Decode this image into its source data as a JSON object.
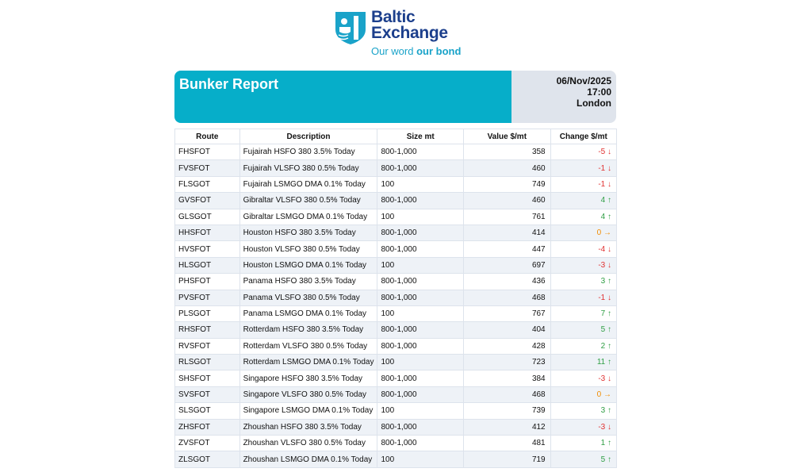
{
  "logo": {
    "line1": "Baltic",
    "line2": "Exchange",
    "tagline_a": "Our word ",
    "tagline_b": "our bond"
  },
  "header": {
    "title": "Bunker Report",
    "date": "06/Nov/2025",
    "time": "17:00",
    "location": "London"
  },
  "colors": {
    "banner": "#06aec9",
    "banner_side": "#dfe4ec",
    "down": "#e03131",
    "up": "#2f9e44",
    "flat": "#f08c00"
  },
  "table": {
    "columns": [
      "Route",
      "Description",
      "Size mt",
      "Value $/mt",
      "Change $/mt"
    ],
    "rows": [
      [
        "FHSFOT",
        "Fujairah HSFO 380 3.5% Today",
        "800-1,000",
        "358",
        "-5",
        "down"
      ],
      [
        "FVSFOT",
        "Fujairah VLSFO 380 0.5% Today",
        "800-1,000",
        "460",
        "-1",
        "down"
      ],
      [
        "FLSGOT",
        "Fujairah LSMGO DMA 0.1% Today",
        "100",
        "749",
        "-1",
        "down"
      ],
      [
        "GVSFOT",
        "Gibraltar VLSFO 380 0.5% Today",
        "800-1,000",
        "460",
        "4",
        "up"
      ],
      [
        "GLSGOT",
        "Gibraltar LSMGO DMA 0.1% Today",
        "100",
        "761",
        "4",
        "up"
      ],
      [
        "HHSFOT",
        "Houston HSFO 380 3.5% Today",
        "800-1,000",
        "414",
        "0",
        "flat"
      ],
      [
        "HVSFOT",
        "Houston VLSFO 380 0.5% Today",
        "800-1,000",
        "447",
        "-4",
        "down"
      ],
      [
        "HLSGOT",
        "Houston LSMGO DMA 0.1% Today",
        "100",
        "697",
        "-3",
        "down"
      ],
      [
        "PHSFOT",
        "Panama HSFO 380 3.5% Today",
        "800-1,000",
        "436",
        "3",
        "up"
      ],
      [
        "PVSFOT",
        "Panama VLSFO 380 0.5% Today",
        "800-1,000",
        "468",
        "-1",
        "down"
      ],
      [
        "PLSGOT",
        "Panama LSMGO DMA 0.1% Today",
        "100",
        "767",
        "7",
        "up"
      ],
      [
        "RHSFOT",
        "Rotterdam HSFO 380 3.5% Today",
        "800-1,000",
        "404",
        "5",
        "up"
      ],
      [
        "RVSFOT",
        "Rotterdam VLSFO 380 0.5% Today",
        "800-1,000",
        "428",
        "2",
        "up"
      ],
      [
        "RLSGOT",
        "Rotterdam LSMGO DMA 0.1% Today",
        "100",
        "723",
        "11",
        "up"
      ],
      [
        "SHSFOT",
        "Singapore HSFO 380 3.5% Today",
        "800-1,000",
        "384",
        "-3",
        "down"
      ],
      [
        "SVSFOT",
        "Singapore VLSFO 380 0.5% Today",
        "800-1,000",
        "468",
        "0",
        "flat"
      ],
      [
        "SLSGOT",
        "Singapore LSMGO DMA 0.1% Today",
        "100",
        "739",
        "3",
        "up"
      ],
      [
        "ZHSFOT",
        "Zhoushan HSFO 380 3.5% Today",
        "800-1,000",
        "412",
        "-3",
        "down"
      ],
      [
        "ZVSFOT",
        "Zhoushan VLSFO 380 0.5% Today",
        "800-1,000",
        "481",
        "1",
        "up"
      ],
      [
        "ZLSGOT",
        "Zhoushan LSMGO DMA 0.1% Today",
        "100",
        "719",
        "5",
        "up"
      ]
    ]
  }
}
